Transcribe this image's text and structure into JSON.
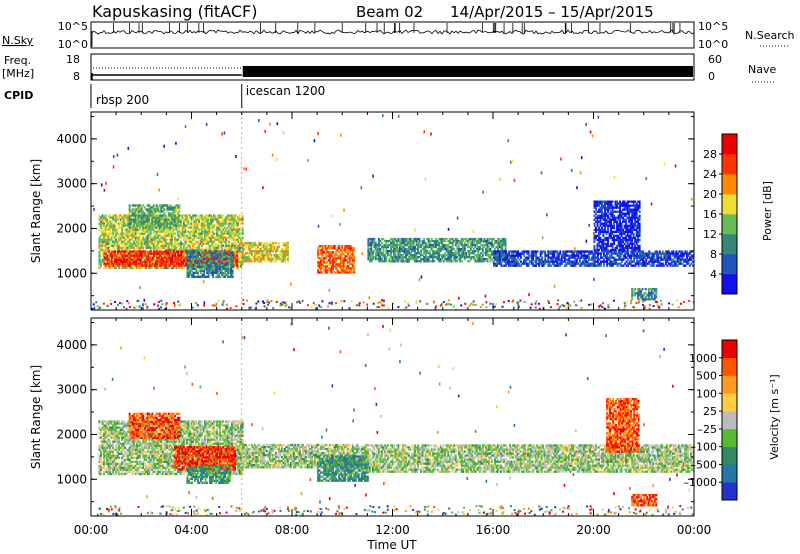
{
  "header": {
    "station": "Kapuskasing (fitACF)",
    "beam": "Beam 02",
    "dates": "14/Apr/2015 – 15/Apr/2015"
  },
  "nsky": {
    "label": "N.Sky",
    "right_label": "N.Search",
    "ticks_left": [
      "10^5",
      "10^0"
    ],
    "ticks_right": [
      "10^5",
      "10^0"
    ]
  },
  "freq": {
    "label_top": "Freq.",
    "label_unit": "[MHz]",
    "ticks_left": [
      "18",
      "8"
    ],
    "right_label": "Nave",
    "ticks_right": [
      "60",
      "0"
    ]
  },
  "cpid": {
    "label": "CPID",
    "segments": [
      {
        "name": "rbsp 200",
        "start_hour": 0
      },
      {
        "name": "icescan 1200",
        "start_hour": 6
      }
    ]
  },
  "chart_data": [
    {
      "type": "heatmap",
      "parameter": "Power",
      "ylabel": "Slant Range [km]",
      "xlabel": "Time UT",
      "ylim": [
        180,
        4600
      ],
      "xlim": [
        0,
        24
      ],
      "yticks": [
        1000,
        2000,
        3000,
        4000
      ],
      "colorbar": {
        "label": "Power [dB]",
        "ticks": [
          "4",
          "8",
          "12",
          "16",
          "20",
          "24",
          "28"
        ],
        "colors": [
          "#1111ee",
          "#2255bb",
          "#338877",
          "#66bb55",
          "#eedd33",
          "#ff8800",
          "#ff3300",
          "#ee0000"
        ]
      },
      "regions": [
        {
          "t0": 0.3,
          "t1": 6.0,
          "r0": 1100,
          "r1": 2300,
          "level": 0.5
        },
        {
          "t0": 1.5,
          "t1": 3.5,
          "r0": 2000,
          "r1": 2500,
          "level": 0.4
        },
        {
          "t0": 0.5,
          "t1": 5.8,
          "r0": 1150,
          "r1": 1500,
          "level": 0.85
        },
        {
          "t0": 3.8,
          "t1": 5.6,
          "r0": 900,
          "r1": 1500,
          "level": 0.3
        },
        {
          "t0": 6.0,
          "t1": 7.8,
          "r0": 1250,
          "r1": 1700,
          "level": 0.55
        },
        {
          "t0": 9.0,
          "t1": 10.5,
          "r0": 1000,
          "r1": 1600,
          "level": 0.75
        },
        {
          "t0": 11.0,
          "t1": 16.5,
          "r0": 1250,
          "r1": 1750,
          "level": 0.35
        },
        {
          "t0": 16.0,
          "t1": 24.0,
          "r0": 1150,
          "r1": 1500,
          "level": 0.15
        },
        {
          "t0": 20.0,
          "t1": 21.8,
          "r0": 1500,
          "r1": 2600,
          "level": 0.08
        },
        {
          "t0": 21.5,
          "t1": 22.5,
          "r0": 400,
          "r1": 650,
          "level": 0.3
        }
      ]
    },
    {
      "type": "heatmap",
      "parameter": "Velocity",
      "ylabel": "Slant Range [km]",
      "xlabel": "Time UT",
      "ylim": [
        180,
        4600
      ],
      "xlim": [
        0,
        24
      ],
      "yticks": [
        1000,
        2000,
        3000,
        4000
      ],
      "xticks": [
        "00:00",
        "04:00",
        "08:00",
        "12:00",
        "16:00",
        "20:00",
        "00:00"
      ],
      "colorbar": {
        "label": "Velocity [m s⁻¹]",
        "ticks": [
          "1000",
          "500",
          "100",
          "25",
          "–25",
          "–100",
          "–500",
          "–1000"
        ],
        "colors": [
          "#2233cc",
          "#2277aa",
          "#338866",
          "#55bb33",
          "#bbbbbb",
          "#ffcc44",
          "#ff9922",
          "#ff5500",
          "#ee0000"
        ]
      },
      "regions": [
        {
          "t0": 0.3,
          "t1": 6.0,
          "r0": 1100,
          "r1": 2300,
          "level": 0.45
        },
        {
          "t0": 1.5,
          "t1": 3.5,
          "r0": 1900,
          "r1": 2450,
          "level": 0.85
        },
        {
          "t0": 3.3,
          "t1": 5.7,
          "r0": 1200,
          "r1": 1700,
          "level": 0.9
        },
        {
          "t0": 3.8,
          "t1": 5.5,
          "r0": 900,
          "r1": 1300,
          "level": 0.3
        },
        {
          "t0": 6.0,
          "t1": 11.0,
          "r0": 1250,
          "r1": 1750,
          "level": 0.45
        },
        {
          "t0": 9.0,
          "t1": 11.0,
          "r0": 950,
          "r1": 1500,
          "level": 0.28
        },
        {
          "t0": 11.0,
          "t1": 24.0,
          "r0": 1150,
          "r1": 1750,
          "level": 0.45
        },
        {
          "t0": 20.5,
          "t1": 21.8,
          "r0": 1600,
          "r1": 2800,
          "level": 0.85
        },
        {
          "t0": 21.5,
          "t1": 22.5,
          "r0": 400,
          "r1": 650,
          "level": 0.85
        }
      ]
    }
  ]
}
